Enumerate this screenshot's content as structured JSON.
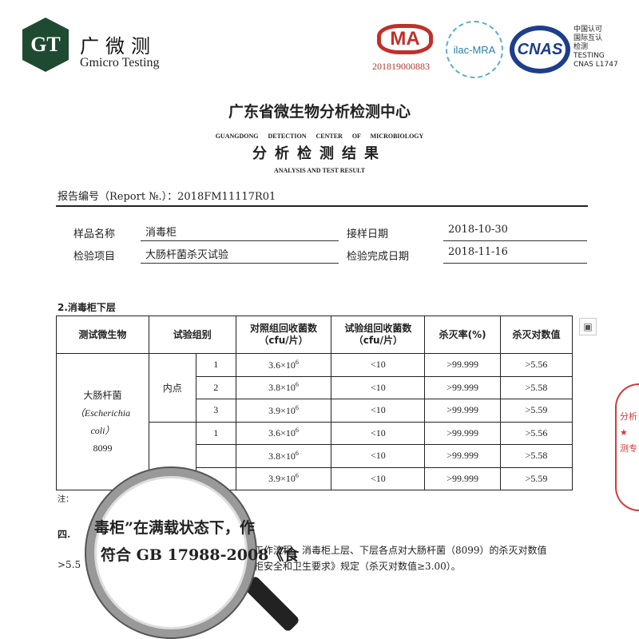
{
  "header": {
    "logo_mark": "GT",
    "brand_cn": "广微测",
    "brand_en": "Gmicro Testing",
    "cma_text": "MA",
    "cma_number": "201819000883",
    "ilac_text": "ilac-MRA",
    "cnas_text": "CNAS",
    "cnas_caption": "中国认可\n国际互认\n检测\nTESTING\nCNAS L1747"
  },
  "document": {
    "title_cn": "广东省微生物分析检测中心",
    "title_en": "GUANGDONG DETECTION CENTER OF MICROBIOLOGY",
    "subtitle_cn": "分析检测结果",
    "subtitle_en": "ANALYSIS AND TEST RESULT",
    "report_no": "报告编号（Report №.）：2018FM11117R01"
  },
  "info": {
    "sample_name_label": "样品名称",
    "sample_name": "消毒柜",
    "receive_date_label": "接样日期",
    "receive_date": "2018-10-30",
    "test_item_label": "检验项目",
    "test_item": "大肠杆菌杀灭试验",
    "complete_date_label": "检验完成日期",
    "complete_date": "2018-11-16"
  },
  "section_title": "2.消毒柜下层",
  "table": {
    "headers": [
      "测试微生物",
      "试验组别",
      "对照组回收菌数（cfu/片）",
      "试验组回收菌数（cfu/片）",
      "杀灭率(%)",
      "杀灭对数值"
    ],
    "organism": [
      "大肠杆菌",
      "（Escherichia",
      "coli）",
      "8099"
    ],
    "group": "内点",
    "rows": [
      {
        "n": "1",
        "control": "3.6×10",
        "exp": "6",
        "test": "<10",
        "rate": ">99.999",
        "log": ">5.56"
      },
      {
        "n": "2",
        "control": "3.8×10",
        "exp": "6",
        "test": "<10",
        "rate": ">99.999",
        "log": ">5.58"
      },
      {
        "n": "3",
        "control": "3.9×10",
        "exp": "6",
        "test": "<10",
        "rate": ">99.999",
        "log": ">5.59"
      },
      {
        "n": "1",
        "control": "3.6×10",
        "exp": "6",
        "test": "<10",
        "rate": ">99.999",
        "log": ">5.56"
      },
      {
        "n": "",
        "control": "3.8×10",
        "exp": "6",
        "test": "<10",
        "rate": ">99.999",
        "log": ">5.58"
      },
      {
        "n": "",
        "control": "3.9×10",
        "exp": "6",
        "test": "<10",
        "rate": ">99.999",
        "log": ">5.59"
      }
    ]
  },
  "notes": {
    "note_prefix": "注：",
    "conclusion_head": "四.",
    "line1": "工作流程，消毒柜上层、下层各点对大肠杆菌（8099）的杀灭对数值",
    "line2_start": ">5.5",
    "line2": "柜安全和卫生要求》规定（杀灭对数值≥3.00）。"
  },
  "magnifier": {
    "line1": "毒柜”在满载状态下，作",
    "line2": "符合 GB 17988-2008《食"
  },
  "stamp": {
    "text": "分析\n★\n测专"
  }
}
